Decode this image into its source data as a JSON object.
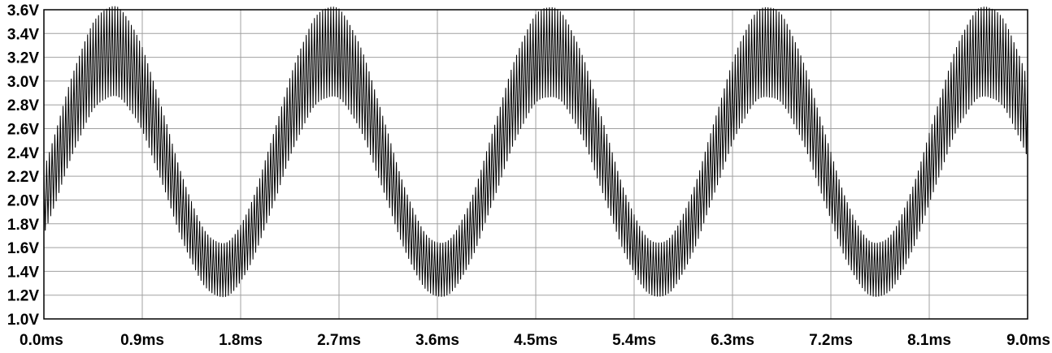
{
  "chart_data": {
    "type": "line",
    "title": "",
    "xlabel": "",
    "ylabel": "",
    "xlim": [
      0.0,
      9.0
    ],
    "ylim": [
      1.0,
      3.6
    ],
    "x_unit": "ms",
    "y_unit": "V",
    "grid": true,
    "legend": "none",
    "colors": {
      "trace": "#000000",
      "grid": "#a0a0a0",
      "frame": "#000000",
      "background": "#ffffff"
    },
    "x_ticks": [
      "0.0ms",
      "0.9ms",
      "1.8ms",
      "2.7ms",
      "3.6ms",
      "4.5ms",
      "5.4ms",
      "6.3ms",
      "7.2ms",
      "8.1ms",
      "9.0ms"
    ],
    "x_tick_values": [
      0.0,
      0.9,
      1.8,
      2.7,
      3.6,
      4.5,
      5.4,
      6.3,
      7.2,
      8.1,
      9.0
    ],
    "y_ticks": [
      "3.6V",
      "3.4V",
      "3.2V",
      "3.0V",
      "2.8V",
      "2.6V",
      "2.4V",
      "2.2V",
      "2.0V",
      "1.8V",
      "1.6V",
      "1.4V",
      "1.2V",
      "1.0V"
    ],
    "y_tick_values": [
      3.6,
      3.4,
      3.2,
      3.0,
      2.8,
      2.6,
      2.4,
      2.2,
      2.0,
      1.8,
      1.6,
      1.4,
      1.2,
      1.0
    ],
    "series": [
      {
        "signal": "slow sine plus high-frequency triangle ripple",
        "slow_offset_V": 2.33,
        "slow_amplitude_V": 0.92,
        "slow_frequency_kHz": 0.5,
        "slow_phase_rad": -0.39,
        "ripple_amplitude_V": 0.31,
        "ripple_frequency_kHz": 40,
        "ripple_amplitude_modulation": 0.25,
        "x_range": [
          0.0,
          9.0
        ]
      }
    ]
  }
}
